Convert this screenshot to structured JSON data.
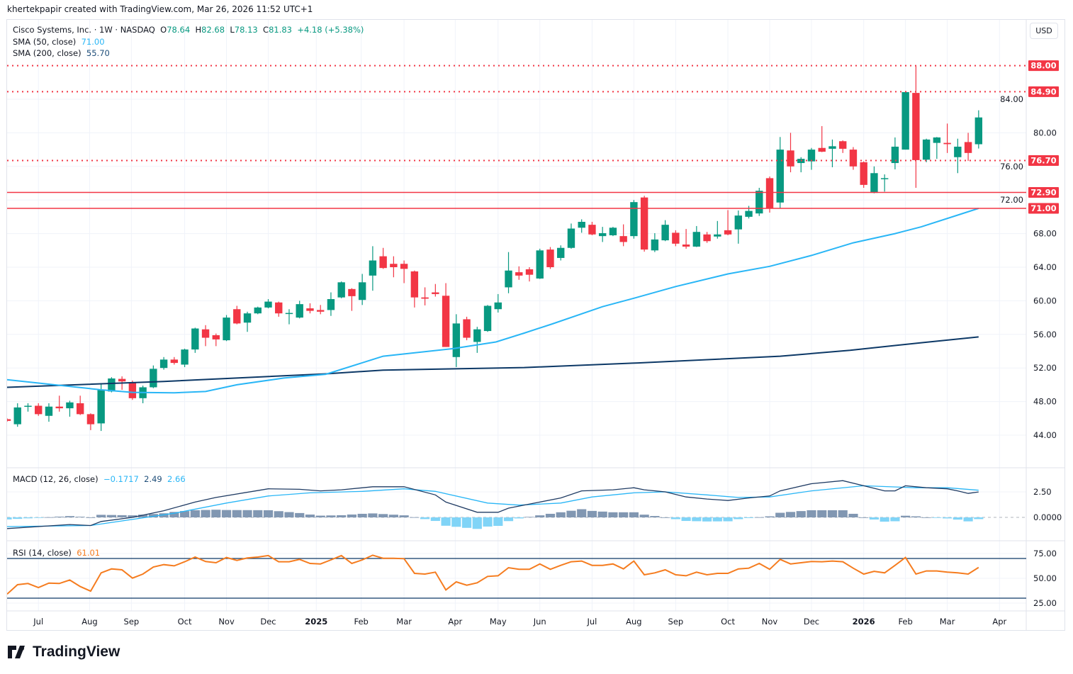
{
  "attribution": "khertekpapir created with TradingView.com, Mar 26, 2026 11:52 UTC+1",
  "currency_button": "USD",
  "legend": {
    "symbol": "Cisco Systems, Inc. · 1W · NASDAQ",
    "o_label": "O",
    "o": "78.64",
    "h_label": "H",
    "h": "82.68",
    "l_label": "L",
    "l": "78.13",
    "c_label": "C",
    "c": "81.83",
    "change": "+4.18 (+5.38%)",
    "sma50_label": "SMA (50, close)",
    "sma50_value": "71.00",
    "sma200_label": "SMA (200, close)",
    "sma200_value": "55.70",
    "macd_label": "MACD (12, 26, close)",
    "macd_hist": "−0.1717",
    "macd_value": "2.49",
    "macd_signal": "2.66",
    "rsi_label": "RSI (14, close)",
    "rsi_value": "61.01"
  },
  "footer": {
    "logo_text": "TradingView"
  },
  "colors": {
    "up": "#089981",
    "down": "#f23645",
    "sma50": "#29b6f6",
    "sma200": "#0c3866",
    "macd_line": "#1f3b63",
    "signal_line": "#29b6f6",
    "hist_pos": "#8197b2",
    "hist_neg": "#80d4f7",
    "rsi": "#f57c1f",
    "rsi_bands": "#0c3866",
    "level": "#f23645",
    "grid": "#f0f3fa"
  },
  "chart_data": {
    "type": "candlestick",
    "title": "Cisco Systems, Inc. · 1W · NASDAQ",
    "interval": "1W",
    "ylim": [
      42,
      90
    ],
    "ohlc": [
      [
        45.9,
        46.0,
        45.6,
        45.7
      ],
      [
        45.3,
        47.8,
        45.0,
        47.3
      ],
      [
        47.4,
        47.8,
        46.8,
        47.5
      ],
      [
        47.5,
        47.8,
        46.3,
        46.5
      ],
      [
        46.3,
        47.8,
        45.6,
        47.4
      ],
      [
        47.4,
        48.7,
        46.8,
        47.2
      ],
      [
        47.2,
        48.1,
        46.2,
        47.9
      ],
      [
        47.8,
        48.7,
        46.4,
        46.5
      ],
      [
        46.5,
        46.6,
        44.6,
        45.3
      ],
      [
        45.4,
        50.2,
        44.5,
        49.4
      ],
      [
        49.2,
        50.9,
        49.1,
        50.75
      ],
      [
        50.7,
        51.0,
        49.4,
        50.4
      ],
      [
        50.3,
        50.5,
        48.2,
        48.4
      ],
      [
        48.4,
        49.9,
        47.8,
        49.7
      ],
      [
        49.7,
        52.3,
        49.6,
        51.9
      ],
      [
        52.0,
        53.3,
        51.8,
        53.0
      ],
      [
        53.0,
        53.3,
        52.4,
        52.6
      ],
      [
        52.4,
        54.3,
        52.1,
        54.2
      ],
      [
        54.2,
        56.8,
        53.8,
        56.7
      ],
      [
        56.6,
        57.1,
        54.6,
        55.6
      ],
      [
        55.9,
        56.1,
        54.6,
        55.4
      ],
      [
        55.3,
        58.3,
        55.2,
        58.0
      ],
      [
        59.0,
        59.4,
        57.2,
        57.3
      ],
      [
        57.4,
        58.7,
        56.3,
        58.5
      ],
      [
        58.5,
        59.3,
        58.4,
        59.2
      ],
      [
        59.2,
        60.2,
        59.1,
        59.9
      ],
      [
        59.8,
        59.9,
        58.1,
        58.5
      ],
      [
        58.5,
        59.0,
        57.2,
        58.55
      ],
      [
        58.0,
        60.0,
        57.9,
        59.6
      ],
      [
        59.1,
        59.7,
        58.5,
        58.8
      ],
      [
        58.9,
        59.5,
        58.4,
        58.7
      ],
      [
        58.9,
        61.0,
        58.2,
        60.2
      ],
      [
        60.4,
        62.3,
        60.3,
        62.2
      ],
      [
        61.4,
        61.5,
        58.8,
        60.55
      ],
      [
        60.1,
        63.2,
        59.5,
        62.2
      ],
      [
        63.0,
        66.5,
        61.2,
        64.8
      ],
      [
        65.3,
        66.3,
        63.8,
        63.9
      ],
      [
        64.4,
        65.3,
        62.8,
        64.0
      ],
      [
        64.4,
        64.8,
        62.1,
        63.8
      ],
      [
        63.5,
        63.6,
        59.2,
        60.4
      ],
      [
        60.4,
        61.6,
        59.45,
        60.25
      ],
      [
        61.0,
        62.0,
        60.5,
        60.8
      ],
      [
        60.6,
        62.1,
        54.5,
        54.5
      ],
      [
        53.3,
        58.4,
        52.1,
        57.3
      ],
      [
        57.8,
        58.1,
        55.3,
        55.6
      ],
      [
        55.1,
        56.9,
        53.8,
        56.6
      ],
      [
        56.4,
        59.5,
        56.3,
        59.4
      ],
      [
        59.0,
        60.8,
        58.6,
        59.8
      ],
      [
        61.6,
        65.8,
        60.9,
        63.6
      ],
      [
        63.4,
        64.1,
        62.5,
        63.0
      ],
      [
        63.75,
        64.0,
        62.3,
        63.1
      ],
      [
        62.65,
        66.2,
        62.6,
        66.0
      ],
      [
        66.1,
        66.4,
        63.8,
        64.0
      ],
      [
        65.1,
        66.6,
        64.8,
        66.3
      ],
      [
        66.3,
        69.2,
        66.2,
        68.6
      ],
      [
        68.7,
        69.7,
        68.1,
        69.4
      ],
      [
        69.05,
        69.4,
        67.8,
        67.9
      ],
      [
        67.7,
        68.8,
        67.0,
        68.05
      ],
      [
        67.8,
        68.8,
        67.7,
        68.7
      ],
      [
        67.7,
        69.1,
        66.5,
        67.0
      ],
      [
        67.7,
        72.0,
        67.4,
        71.75
      ],
      [
        72.3,
        72.5,
        65.85,
        66.1
      ],
      [
        66.0,
        68.05,
        65.8,
        67.3
      ],
      [
        67.2,
        69.6,
        67.1,
        69.05
      ],
      [
        68.1,
        68.4,
        66.5,
        66.8
      ],
      [
        66.7,
        68.55,
        66.2,
        66.45
      ],
      [
        66.45,
        68.9,
        66.4,
        68.2
      ],
      [
        67.9,
        68.2,
        66.9,
        67.1
      ],
      [
        67.65,
        69.5,
        67.4,
        67.9
      ],
      [
        68.4,
        70.8,
        67.8,
        67.9
      ],
      [
        68.5,
        70.75,
        66.8,
        70.15
      ],
      [
        70.0,
        71.3,
        69.8,
        70.7
      ],
      [
        70.4,
        73.45,
        70.1,
        73.1
      ],
      [
        74.6,
        74.8,
        70.5,
        71.0
      ],
      [
        71.7,
        79.5,
        71.0,
        78.0
      ],
      [
        77.9,
        80.0,
        75.3,
        76.0
      ],
      [
        76.4,
        77.1,
        75.3,
        76.9
      ],
      [
        76.6,
        78.2,
        75.6,
        78.0
      ],
      [
        78.2,
        80.8,
        77.7,
        77.75
      ],
      [
        78.1,
        79.2,
        75.9,
        78.4
      ],
      [
        79.0,
        79.1,
        77.6,
        78.1
      ],
      [
        78.0,
        78.3,
        75.6,
        76.0
      ],
      [
        76.5,
        76.6,
        73.45,
        73.8
      ],
      [
        72.85,
        76.0,
        72.8,
        75.2
      ],
      [
        74.5,
        75.05,
        73.0,
        74.6
      ],
      [
        76.4,
        79.45,
        75.65,
        78.35
      ],
      [
        78.0,
        84.9,
        78.0,
        84.85
      ],
      [
        84.75,
        88.0,
        73.45,
        76.75
      ],
      [
        76.8,
        79.3,
        76.5,
        79.2
      ],
      [
        78.8,
        79.5,
        76.9,
        79.45
      ],
      [
        78.8,
        81.1,
        77.6,
        78.65
      ],
      [
        77.1,
        79.3,
        75.2,
        78.35
      ],
      [
        78.9,
        80.0,
        76.65,
        77.6
      ],
      [
        78.64,
        82.68,
        78.13,
        81.83
      ]
    ],
    "sma50": [
      [
        0,
        50.6
      ],
      [
        9,
        49.4
      ],
      [
        12,
        49.1
      ],
      [
        16,
        49.05
      ],
      [
        19,
        49.2
      ],
      [
        22,
        50.0
      ],
      [
        26.5,
        50.8
      ],
      [
        30.5,
        51.25
      ],
      [
        36,
        53.4
      ],
      [
        42.7,
        54.3
      ],
      [
        46.8,
        55.1
      ],
      [
        49.5,
        56.15
      ],
      [
        52.2,
        57.25
      ],
      [
        57,
        59.3
      ],
      [
        60,
        60.3
      ],
      [
        64,
        61.7
      ],
      [
        69,
        63.2
      ],
      [
        73,
        64.1
      ],
      [
        77,
        65.4
      ],
      [
        81,
        66.9
      ],
      [
        85,
        68.0
      ],
      [
        87.5,
        68.8
      ],
      [
        91,
        70.2
      ],
      [
        93,
        71.0
      ]
    ],
    "sma200": [
      [
        0,
        49.7
      ],
      [
        15,
        50.4
      ],
      [
        30.5,
        51.3
      ],
      [
        36,
        51.75
      ],
      [
        49.5,
        52.05
      ],
      [
        60.4,
        52.6
      ],
      [
        74,
        53.4
      ],
      [
        80.7,
        54.1
      ],
      [
        87.5,
        55.0
      ],
      [
        93,
        55.7
      ]
    ],
    "levels": [
      {
        "value": 88.0,
        "label": "88.00",
        "style": "dotted"
      },
      {
        "value": 84.9,
        "label": "84.90",
        "style": "dotted"
      },
      {
        "value": 76.7,
        "label": "76.70",
        "style": "dotted"
      },
      {
        "value": 72.9,
        "label": "72.90",
        "style": "solid"
      },
      {
        "value": 71.0,
        "label": "71.00",
        "style": "solid"
      }
    ],
    "price_ticks": [
      "84.00",
      "80.00",
      "76.00",
      "72.00",
      "68.00",
      "64.00",
      "60.00",
      "56.00",
      "52.00",
      "48.00",
      "44.00"
    ],
    "time_ticks": [
      {
        "label": "Jul",
        "week": 3
      },
      {
        "label": "Aug",
        "week": 7.9
      },
      {
        "label": "Sep",
        "week": 11.9
      },
      {
        "label": "Oct",
        "week": 17
      },
      {
        "label": "Nov",
        "week": 21
      },
      {
        "label": "Dec",
        "week": 25
      },
      {
        "label": "2025",
        "week": 29.6
      },
      {
        "label": "Feb",
        "week": 33.9
      },
      {
        "label": "Mar",
        "week": 38
      },
      {
        "label": "Apr",
        "week": 42.9
      },
      {
        "label": "May",
        "week": 47
      },
      {
        "label": "Jun",
        "week": 51
      },
      {
        "label": "Jul",
        "week": 56
      },
      {
        "label": "Aug",
        "week": 60
      },
      {
        "label": "Sep",
        "week": 64
      },
      {
        "label": "Oct",
        "week": 69
      },
      {
        "label": "Nov",
        "week": 73
      },
      {
        "label": "Dec",
        "week": 77
      },
      {
        "label": "2026",
        "week": 82
      },
      {
        "label": "Feb",
        "week": 86
      },
      {
        "label": "Mar",
        "week": 90
      },
      {
        "label": "Apr",
        "week": 95
      }
    ],
    "macd": {
      "ticks": [
        "2.50",
        "0.0000"
      ],
      "macd_line": [
        [
          0,
          -1.1
        ],
        [
          6,
          -0.7
        ],
        [
          8,
          -0.8
        ],
        [
          9,
          -0.4
        ],
        [
          12,
          0
        ],
        [
          15,
          0.65
        ],
        [
          18,
          1.5
        ],
        [
          20,
          1.95
        ],
        [
          25,
          2.8
        ],
        [
          28,
          2.75
        ],
        [
          30,
          2.6
        ],
        [
          32,
          2.7
        ],
        [
          35,
          3.0
        ],
        [
          38,
          3.0
        ],
        [
          41,
          2.2
        ],
        [
          42,
          1.5
        ],
        [
          45,
          0.5
        ],
        [
          47,
          0.5
        ],
        [
          48,
          0.9
        ],
        [
          51,
          1.5
        ],
        [
          53,
          1.9
        ],
        [
          55,
          2.6
        ],
        [
          58,
          2.7
        ],
        [
          60,
          2.9
        ],
        [
          61,
          2.7
        ],
        [
          63,
          2.5
        ],
        [
          65,
          2.0
        ],
        [
          67,
          1.8
        ],
        [
          69,
          1.65
        ],
        [
          71,
          1.9
        ],
        [
          73,
          2.1
        ],
        [
          74,
          2.6
        ],
        [
          77,
          3.3
        ],
        [
          80,
          3.6
        ],
        [
          82,
          3.1
        ],
        [
          84,
          2.6
        ],
        [
          85,
          2.6
        ],
        [
          86,
          3.1
        ],
        [
          88,
          2.9
        ],
        [
          90,
          2.8
        ],
        [
          91,
          2.6
        ],
        [
          92,
          2.35
        ],
        [
          93,
          2.49
        ]
      ],
      "signal_line": [
        [
          0,
          -0.9
        ],
        [
          8,
          -0.8
        ],
        [
          16,
          0.4
        ],
        [
          21,
          1.4
        ],
        [
          25,
          2.1
        ],
        [
          29,
          2.4
        ],
        [
          34,
          2.55
        ],
        [
          38,
          2.8
        ],
        [
          41,
          2.55
        ],
        [
          46,
          1.4
        ],
        [
          49,
          1.2
        ],
        [
          53,
          1.4
        ],
        [
          56,
          2.0
        ],
        [
          60,
          2.4
        ],
        [
          63,
          2.5
        ],
        [
          67,
          2.2
        ],
        [
          70,
          1.95
        ],
        [
          73,
          2.0
        ],
        [
          77,
          2.6
        ],
        [
          82,
          3.1
        ],
        [
          87,
          2.9
        ],
        [
          90,
          2.9
        ],
        [
          93,
          2.66
        ]
      ]
    },
    "rsi": {
      "ticks": [
        "75.00",
        "50.00",
        "25.00"
      ],
      "bands": [
        70,
        30
      ],
      "values": [
        34.1,
        43.6,
        44.8,
        40.7,
        45.2,
        44.8,
        48.3,
        41.7,
        37.1,
        55.5,
        59.5,
        58.6,
        50.2,
        54.3,
        61.4,
        63.8,
        62.6,
        66.7,
        71.4,
        66.9,
        65.7,
        71,
        68.1,
        70.5,
        71.4,
        72.9,
        66.7,
        66.7,
        69.1,
        65,
        64.5,
        68.6,
        72.9,
        65,
        68.6,
        73.3,
        70.2,
        70.2,
        69.8,
        55,
        54.3,
        56.2,
        38.3,
        46.4,
        43.1,
        45.5,
        51.9,
        52.6,
        60.7,
        59.1,
        59.1,
        64.5,
        59.1,
        63.1,
        66.7,
        67.4,
        63.1,
        63.1,
        64.5,
        59.5,
        67.4,
        53.6,
        55.5,
        58.6,
        53.6,
        52.6,
        56.2,
        53.6,
        55,
        55,
        59.5,
        60.2,
        65,
        59.1,
        69.1,
        64.5,
        65.7,
        66.9,
        66.7,
        67.4,
        66.7,
        60.2,
        54.3,
        57.1,
        55.5,
        63.1,
        71,
        54.3,
        57.4,
        57.4,
        56.2,
        55.5,
        54.3,
        61.01
      ]
    }
  }
}
